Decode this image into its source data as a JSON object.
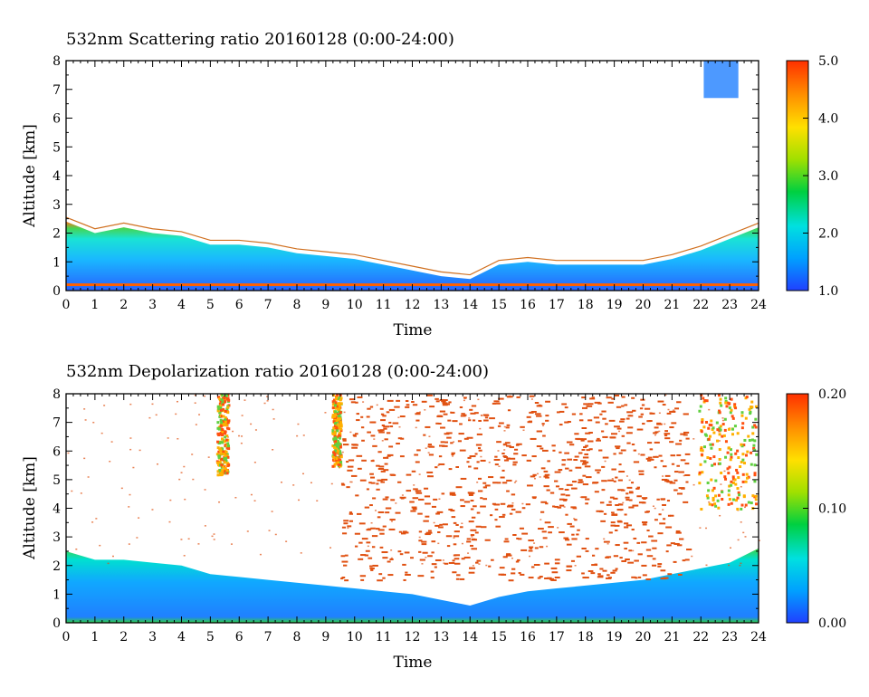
{
  "chart_data": [
    {
      "type": "heatmap",
      "title": "532nm Scattering ratio  20160128 (0:00-24:00)",
      "xlabel": "Time",
      "ylabel": "Altitude [km]",
      "xlim": [
        0,
        24
      ],
      "ylim": [
        0,
        8
      ],
      "x_ticks": [
        "0",
        "1",
        "2",
        "3",
        "4",
        "5",
        "6",
        "7",
        "8",
        "9",
        "10",
        "11",
        "12",
        "13",
        "14",
        "15",
        "16",
        "17",
        "18",
        "19",
        "20",
        "21",
        "22",
        "23",
        "24"
      ],
      "y_ticks": [
        "0",
        "1",
        "2",
        "3",
        "4",
        "5",
        "6",
        "7",
        "8"
      ],
      "colorbar": {
        "min": 1.0,
        "max": 5.0,
        "labels": [
          "1.0",
          "2.0",
          "3.0",
          "4.0",
          "5.0"
        ],
        "label_values": [
          1.0,
          2.0,
          3.0,
          4.0,
          5.0
        ]
      },
      "colormap": [
        "#2040ff",
        "#00a0ff",
        "#00e0e0",
        "#00d040",
        "#a0e000",
        "#ffe000",
        "#ff9000",
        "#ff3000"
      ],
      "features": {
        "boundary_layer_top_km": [
          {
            "t": 0,
            "h": 2.4
          },
          {
            "t": 1,
            "h": 2.0
          },
          {
            "t": 2,
            "h": 2.2
          },
          {
            "t": 3,
            "h": 2.0
          },
          {
            "t": 4,
            "h": 1.9
          },
          {
            "t": 5,
            "h": 1.6
          },
          {
            "t": 6,
            "h": 1.6
          },
          {
            "t": 7,
            "h": 1.5
          },
          {
            "t": 8,
            "h": 1.3
          },
          {
            "t": 9,
            "h": 1.2
          },
          {
            "t": 10,
            "h": 1.1
          },
          {
            "t": 11,
            "h": 0.9
          },
          {
            "t": 12,
            "h": 0.7
          },
          {
            "t": 13,
            "h": 0.5
          },
          {
            "t": 14,
            "h": 0.4
          },
          {
            "t": 15,
            "h": 0.9
          },
          {
            "t": 16,
            "h": 1.0
          },
          {
            "t": 17,
            "h": 0.9
          },
          {
            "t": 18,
            "h": 0.9
          },
          {
            "t": 19,
            "h": 0.9
          },
          {
            "t": 20,
            "h": 0.9
          },
          {
            "t": 21,
            "h": 1.1
          },
          {
            "t": 22,
            "h": 1.4
          },
          {
            "t": 23,
            "h": 1.8
          },
          {
            "t": 24,
            "h": 2.2
          }
        ],
        "high_cloud": {
          "t_start": 22.1,
          "t_end": 23.3,
          "h_bottom": 6.7,
          "h_top": 8.0
        }
      }
    },
    {
      "type": "heatmap",
      "title": "532nm Depolarization ratio  20160128 (0:00-24:00)",
      "xlabel": "Time",
      "ylabel": "Altitude [km]",
      "xlim": [
        0,
        24
      ],
      "ylim": [
        0,
        8
      ],
      "x_ticks": [
        "0",
        "1",
        "2",
        "3",
        "4",
        "5",
        "6",
        "7",
        "8",
        "9",
        "10",
        "11",
        "12",
        "13",
        "14",
        "15",
        "16",
        "17",
        "18",
        "19",
        "20",
        "21",
        "22",
        "23",
        "24"
      ],
      "y_ticks": [
        "0",
        "1",
        "2",
        "3",
        "4",
        "5",
        "6",
        "7",
        "8"
      ],
      "colorbar": {
        "min": 0.0,
        "max": 0.2,
        "labels": [
          "0.00",
          "0.10",
          "0.20"
        ],
        "label_values": [
          0.0,
          0.1,
          0.2
        ]
      },
      "colormap": [
        "#2040ff",
        "#00a0ff",
        "#00e0e0",
        "#00d040",
        "#a0e000",
        "#ffe000",
        "#ff9000",
        "#ff3000"
      ],
      "features": {
        "aerosol_layer_top_km": [
          {
            "t": 0,
            "h": 2.5
          },
          {
            "t": 1,
            "h": 2.2
          },
          {
            "t": 2,
            "h": 2.2
          },
          {
            "t": 3,
            "h": 2.1
          },
          {
            "t": 4,
            "h": 2.0
          },
          {
            "t": 5,
            "h": 1.7
          },
          {
            "t": 6,
            "h": 1.6
          },
          {
            "t": 7,
            "h": 1.5
          },
          {
            "t": 8,
            "h": 1.4
          },
          {
            "t": 9,
            "h": 1.3
          },
          {
            "t": 10,
            "h": 1.2
          },
          {
            "t": 11,
            "h": 1.1
          },
          {
            "t": 12,
            "h": 1.0
          },
          {
            "t": 13,
            "h": 0.8
          },
          {
            "t": 14,
            "h": 0.6
          },
          {
            "t": 15,
            "h": 0.9
          },
          {
            "t": 16,
            "h": 1.1
          },
          {
            "t": 17,
            "h": 1.2
          },
          {
            "t": 18,
            "h": 1.3
          },
          {
            "t": 19,
            "h": 1.4
          },
          {
            "t": 20,
            "h": 1.5
          },
          {
            "t": 21,
            "h": 1.7
          },
          {
            "t": 22,
            "h": 1.9
          },
          {
            "t": 23,
            "h": 2.1
          },
          {
            "t": 24,
            "h": 2.6
          }
        ],
        "high_depol_columns": [
          {
            "t_start": 5.2,
            "t_end": 5.6,
            "h_bottom": 5.2,
            "h_top": 8.0
          },
          {
            "t_start": 9.2,
            "t_end": 9.5,
            "h_bottom": 5.5,
            "h_top": 8.0
          },
          {
            "t_start": 21.9,
            "t_end": 23.9,
            "h_bottom": 4.0,
            "h_top": 8.0
          }
        ],
        "scattered_noise_region": {
          "t_start": 9.5,
          "t_end": 21.5,
          "h_bottom": 1.5,
          "h_top": 8.0
        }
      }
    }
  ]
}
